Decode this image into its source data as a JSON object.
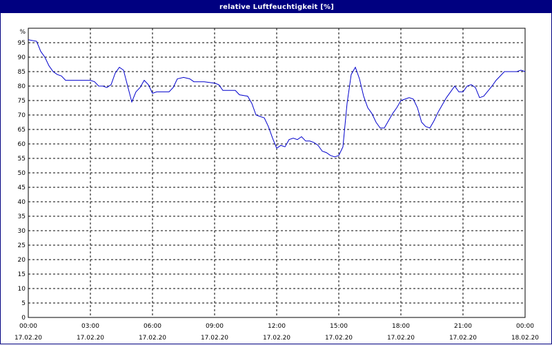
{
  "window": {
    "title": "relative Luftfeuchtigkeit [%]"
  },
  "chart_data": {
    "type": "line",
    "title": "relative Luftfeuchtigkeit [%]",
    "ylabel": "%",
    "xlabel": "",
    "ylim": [
      0,
      100
    ],
    "y_ticks": [
      0,
      5,
      10,
      15,
      20,
      25,
      30,
      35,
      40,
      45,
      50,
      55,
      60,
      65,
      70,
      75,
      80,
      85,
      90,
      95
    ],
    "x_range_hours": [
      0,
      24
    ],
    "x_ticks": [
      {
        "time": "00:00",
        "date": "17.02.20"
      },
      {
        "time": "03:00",
        "date": "17.02.20"
      },
      {
        "time": "06:00",
        "date": "17.02.20"
      },
      {
        "time": "09:00",
        "date": "17.02.20"
      },
      {
        "time": "12:00",
        "date": "17.02.20"
      },
      {
        "time": "15:00",
        "date": "17.02.20"
      },
      {
        "time": "18:00",
        "date": "17.02.20"
      },
      {
        "time": "21:00",
        "date": "17.02.20"
      },
      {
        "time": "00:00",
        "date": "18.02.20"
      }
    ],
    "grid": true,
    "line_color": "#0000cc",
    "series": [
      {
        "x_hours": [
          0,
          0.4,
          0.6,
          0.8,
          1.0,
          1.2,
          1.4,
          1.6,
          1.8,
          2.0,
          2.5,
          3.0,
          3.2,
          3.4,
          3.6,
          3.8,
          4.0,
          4.2,
          4.4,
          4.6,
          4.8,
          5.0,
          5.2,
          5.4,
          5.6,
          5.8,
          6.0,
          6.2,
          6.5,
          6.8,
          7.0,
          7.2,
          7.5,
          7.8,
          8.0,
          8.5,
          9.0,
          9.2,
          9.4,
          9.6,
          10.0,
          10.2,
          10.6,
          10.8,
          11.0,
          11.2,
          11.4,
          11.6,
          11.8,
          12.0,
          12.2,
          12.4,
          12.6,
          12.8,
          13.0,
          13.2,
          13.4,
          13.6,
          13.8,
          14.0,
          14.2,
          14.4,
          14.6,
          14.8,
          15.0,
          15.2,
          15.4,
          15.6,
          15.8,
          16.0,
          16.2,
          16.4,
          16.6,
          16.8,
          17.0,
          17.2,
          17.4,
          17.6,
          17.8,
          18.0,
          18.2,
          18.4,
          18.6,
          18.8,
          19.0,
          19.2,
          19.4,
          19.6,
          19.8,
          20.0,
          20.2,
          20.4,
          20.6,
          20.8,
          21.0,
          21.2,
          21.4,
          21.6,
          21.8,
          22.0,
          22.4,
          22.6,
          23.0,
          23.4,
          23.6,
          23.8,
          24.0
        ],
        "values": [
          96,
          95.5,
          92,
          90,
          87,
          85,
          84,
          83.5,
          82,
          82,
          82,
          82,
          81.5,
          80,
          80,
          79.5,
          80.5,
          84.5,
          86.5,
          85.5,
          80,
          74.5,
          78,
          79.5,
          82,
          80.5,
          77.5,
          78,
          78,
          78,
          79.5,
          82.5,
          83,
          82.5,
          81.5,
          81.5,
          81,
          80.5,
          78.5,
          78.5,
          78.5,
          77,
          76.5,
          74,
          70,
          69.5,
          69,
          66,
          62,
          58.5,
          59.5,
          59,
          61.5,
          62,
          61.5,
          62.5,
          61,
          61,
          60.5,
          59.5,
          57.5,
          57,
          56,
          55.5,
          56,
          59,
          74,
          84,
          86.5,
          82.5,
          76.5,
          72.5,
          70.5,
          67.5,
          65.5,
          65.5,
          68,
          70.5,
          72.5,
          75,
          75.5,
          76,
          75.5,
          72.5,
          67.5,
          66,
          65.5,
          68,
          71,
          73.5,
          76,
          78,
          80,
          78,
          78,
          80,
          80.5,
          79.5,
          76,
          76.5,
          80,
          82,
          85,
          85,
          85,
          85.5,
          85
        ]
      }
    ]
  }
}
